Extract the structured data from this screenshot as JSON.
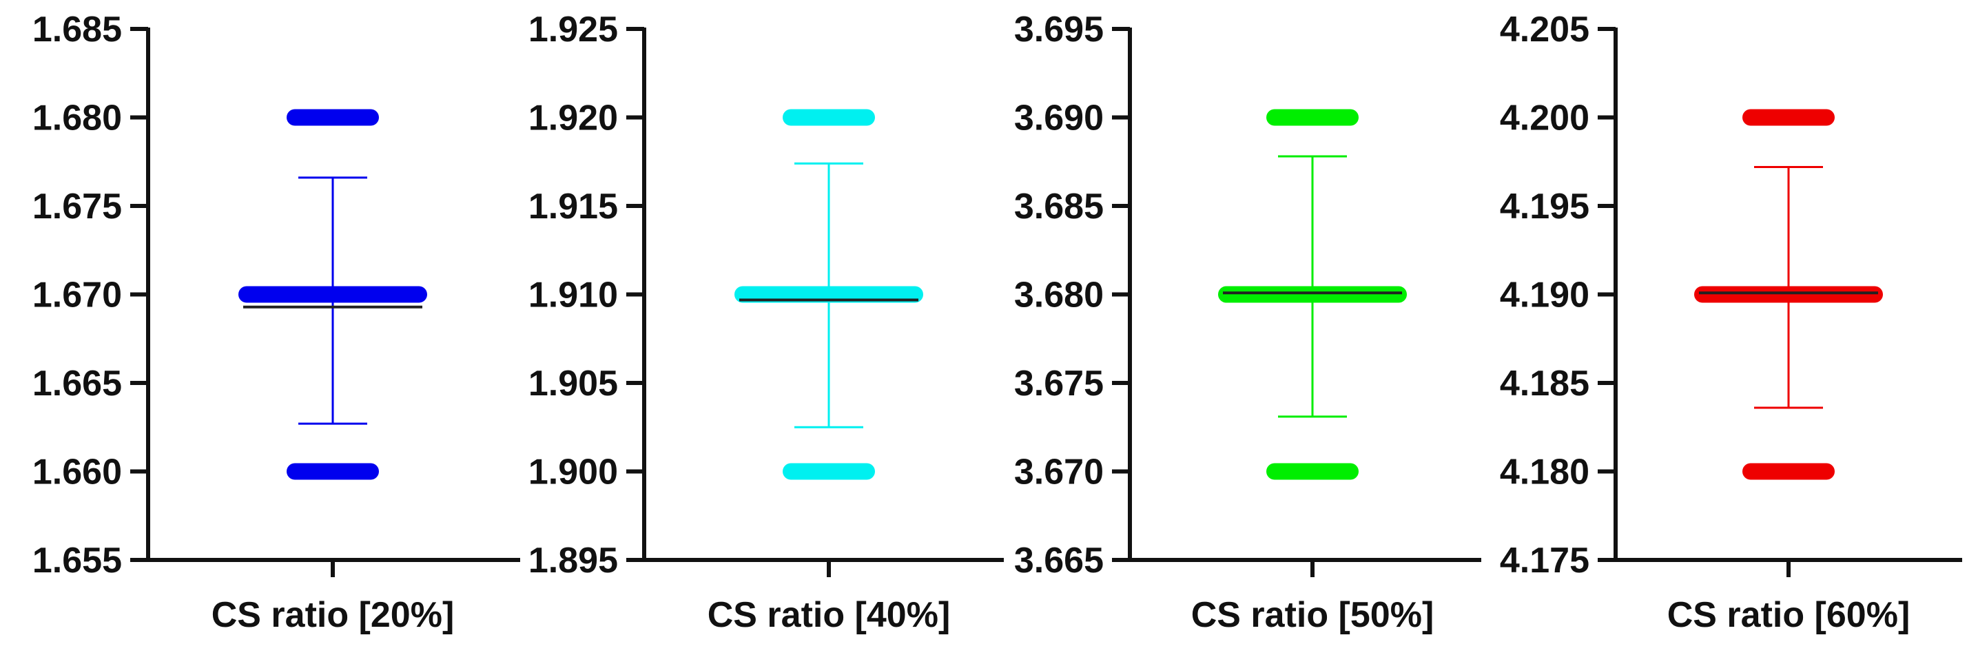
{
  "chart_data": [
    {
      "type": "scatter",
      "xlabel": "CS ratio [20%]",
      "color": "#0000ee",
      "ylim": [
        1.655,
        1.685
      ],
      "y_ticks": [
        "1.655",
        "1.660",
        "1.665",
        "1.670",
        "1.675",
        "1.680",
        "1.685"
      ],
      "point_values": [
        1.66,
        1.67,
        1.68
      ],
      "mean": 1.6696,
      "error_upper": 1.6766,
      "error_lower": 1.6627
    },
    {
      "type": "scatter",
      "xlabel": "CS ratio [40%]",
      "color": "#00f0f0",
      "ylim": [
        1.895,
        1.925
      ],
      "y_ticks": [
        "1.895",
        "1.900",
        "1.905",
        "1.910",
        "1.915",
        "1.920",
        "1.925"
      ],
      "point_values": [
        1.9,
        1.91,
        1.92
      ],
      "mean": 1.91,
      "error_upper": 1.9174,
      "error_lower": 1.9025
    },
    {
      "type": "scatter",
      "xlabel": "CS ratio [50%]",
      "color": "#00ee00",
      "ylim": [
        3.665,
        3.695
      ],
      "y_ticks": [
        "3.665",
        "3.670",
        "3.675",
        "3.680",
        "3.685",
        "3.690",
        "3.695"
      ],
      "point_values": [
        3.67,
        3.68,
        3.69
      ],
      "mean": 3.6804,
      "error_upper": 3.6878,
      "error_lower": 3.6731
    },
    {
      "type": "scatter",
      "xlabel": "CS ratio [60%]",
      "color": "#ee0000",
      "ylim": [
        4.175,
        4.205
      ],
      "y_ticks": [
        "4.175",
        "4.180",
        "4.185",
        "4.190",
        "4.195",
        "4.200",
        "4.205"
      ],
      "point_values": [
        4.18,
        4.19,
        4.2
      ],
      "mean": 4.1904,
      "error_upper": 4.1972,
      "error_lower": 4.1836
    }
  ]
}
